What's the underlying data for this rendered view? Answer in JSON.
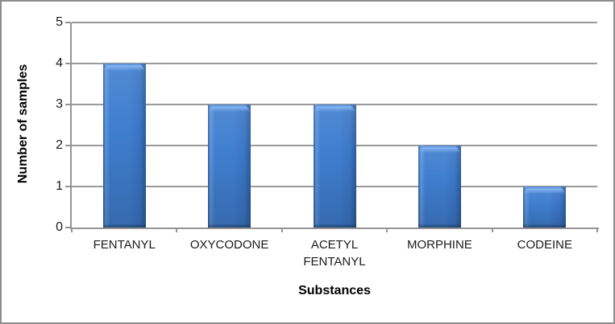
{
  "frame": {
    "background": "#ffffff",
    "border_color": "#8d8d8d"
  },
  "chart_data": {
    "type": "bar",
    "categories": [
      "FENTANYL",
      "OXYCODONE",
      "ACETYL FENTANYL",
      "MORPHINE",
      "CODEINE"
    ],
    "values": [
      4,
      3,
      3,
      2,
      1
    ],
    "xlabel": "Substances",
    "ylabel": "Number of samples",
    "ylim": [
      0,
      5
    ],
    "yticks": [
      0,
      1,
      2,
      3,
      4,
      5
    ],
    "grid": true,
    "legend": false,
    "colors": {
      "bar_fill": "#3f7ecf",
      "bar_edge": "#2b5c99",
      "bar_highlight": "#84b4f2",
      "gridline": "#9a9a9a",
      "axis_line": "#949494",
      "text": "#1a1a1a",
      "frame_border": "#8d8d8d"
    }
  }
}
